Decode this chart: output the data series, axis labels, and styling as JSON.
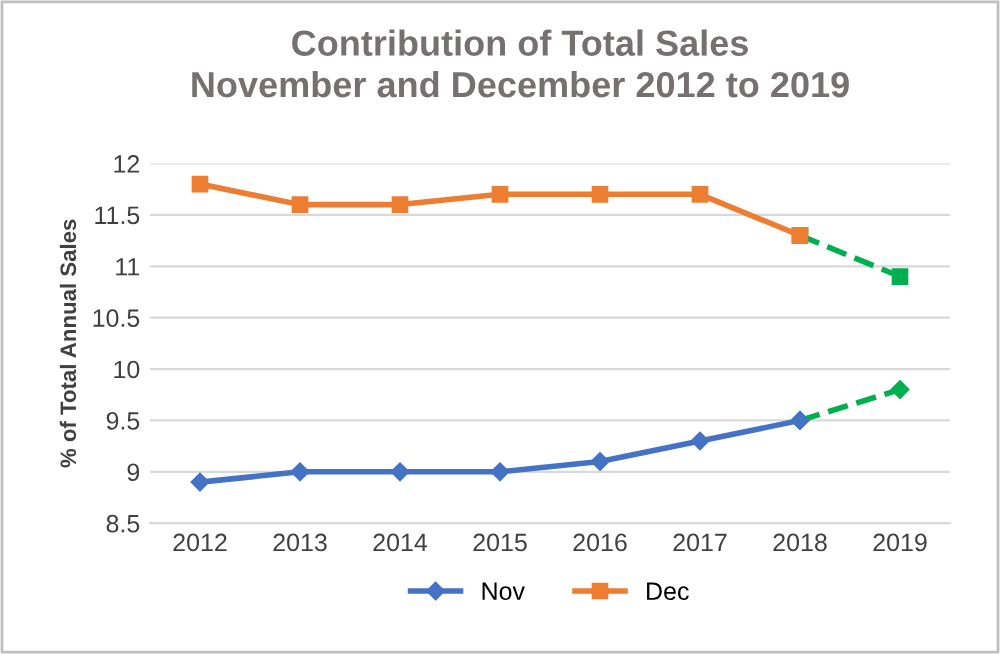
{
  "chart_data": {
    "type": "line",
    "title": "Contribution of Total Sales\nNovember and December 2012 to 2019",
    "ylabel": "% of Total Annual Sales",
    "categories": [
      "2012",
      "2013",
      "2014",
      "2015",
      "2016",
      "2017",
      "2018",
      "2019"
    ],
    "series": [
      {
        "name": "Nov",
        "color": "#4472c4",
        "marker": "diamond",
        "values": [
          8.9,
          9.0,
          9.0,
          9.0,
          9.1,
          9.3,
          9.5,
          null
        ]
      },
      {
        "name": "Dec",
        "color": "#ed7d31",
        "marker": "square",
        "values": [
          11.8,
          11.6,
          11.6,
          11.7,
          11.7,
          11.7,
          11.3,
          null
        ]
      },
      {
        "color": "#00b050",
        "marker": "diamond",
        "line_style": "dashed",
        "values": [
          null,
          null,
          null,
          null,
          null,
          null,
          9.5,
          9.8
        ]
      },
      {
        "color": "#00b050",
        "marker": "square",
        "line_style": "dashed",
        "values": [
          null,
          null,
          null,
          null,
          null,
          null,
          11.3,
          10.9
        ]
      }
    ],
    "ylim": [
      8.5,
      12
    ],
    "yticks": [
      8.5,
      9,
      9.5,
      10,
      10.5,
      11,
      11.5,
      12
    ],
    "grid": "y",
    "legend": "bottom"
  }
}
